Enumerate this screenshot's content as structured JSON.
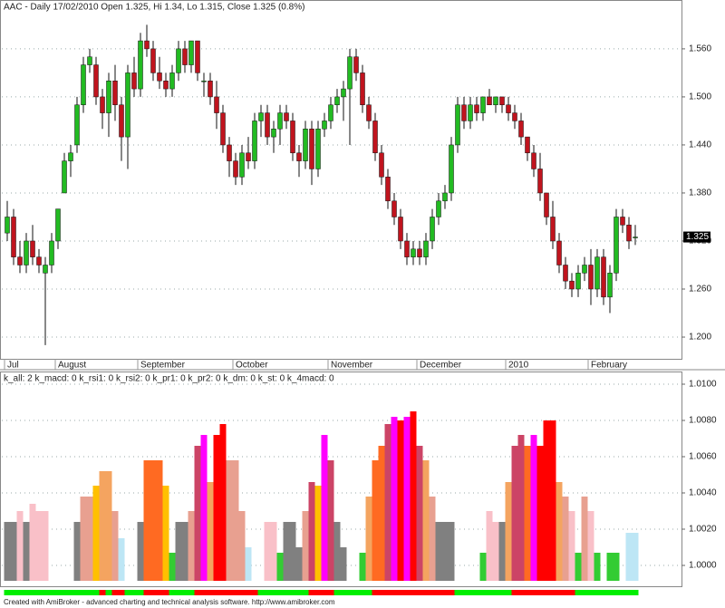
{
  "chart_data": [
    {
      "type": "candlestick",
      "title": "AAC - Daily 17/02/2010 Open 1.325, Hi 1.34, Lo 1.315, Close 1.325 (0.8%)",
      "categories": [
        "Jul",
        null,
        null,
        null,
        null,
        null,
        null,
        null,
        "August",
        null,
        null,
        null,
        null,
        null,
        null,
        null,
        null,
        null,
        null,
        null,
        null,
        "September",
        null,
        null,
        null,
        null,
        null,
        null,
        null,
        null,
        null,
        null,
        null,
        null,
        null,
        null,
        "October",
        null,
        null,
        null,
        null,
        null,
        null,
        null,
        null,
        null,
        null,
        null,
        null,
        null,
        null,
        "November",
        null,
        null,
        null,
        null,
        null,
        null,
        null,
        null,
        null,
        null,
        null,
        null,
        null,
        "December",
        null,
        null,
        null,
        null,
        null,
        null,
        null,
        null,
        null,
        null,
        null,
        null,
        null,
        "2010",
        null,
        null,
        null,
        null,
        null,
        null,
        null,
        null,
        null,
        null,
        null,
        null,
        "February",
        null,
        null,
        null,
        null,
        null,
        null,
        null
      ],
      "ohlc": [
        [
          1.33,
          1.37,
          1.32,
          1.35
        ],
        [
          1.35,
          1.36,
          1.29,
          1.3
        ],
        [
          1.3,
          1.32,
          1.28,
          1.29
        ],
        [
          1.29,
          1.33,
          1.28,
          1.32
        ],
        [
          1.32,
          1.34,
          1.29,
          1.3
        ],
        [
          1.3,
          1.31,
          1.28,
          1.29
        ],
        [
          1.28,
          1.3,
          1.19,
          1.29
        ],
        [
          1.29,
          1.33,
          1.28,
          1.32
        ],
        [
          1.32,
          1.36,
          1.31,
          1.36
        ],
        [
          1.38,
          1.43,
          1.38,
          1.42
        ],
        [
          1.42,
          1.44,
          1.4,
          1.43
        ],
        [
          1.44,
          1.5,
          1.43,
          1.49
        ],
        [
          1.49,
          1.55,
          1.48,
          1.54
        ],
        [
          1.54,
          1.56,
          1.53,
          1.55
        ],
        [
          1.54,
          1.55,
          1.49,
          1.5
        ],
        [
          1.5,
          1.51,
          1.46,
          1.48
        ],
        [
          1.48,
          1.53,
          1.45,
          1.52
        ],
        [
          1.52,
          1.54,
          1.47,
          1.49
        ],
        [
          1.49,
          1.5,
          1.42,
          1.45
        ],
        [
          1.45,
          1.54,
          1.41,
          1.53
        ],
        [
          1.53,
          1.55,
          1.5,
          1.51
        ],
        [
          1.51,
          1.58,
          1.5,
          1.57
        ],
        [
          1.57,
          1.59,
          1.55,
          1.56
        ],
        [
          1.56,
          1.57,
          1.52,
          1.53
        ],
        [
          1.53,
          1.55,
          1.51,
          1.52
        ],
        [
          1.52,
          1.53,
          1.5,
          1.51
        ],
        [
          1.51,
          1.54,
          1.5,
          1.53
        ],
        [
          1.53,
          1.57,
          1.52,
          1.56
        ],
        [
          1.56,
          1.57,
          1.53,
          1.54
        ],
        [
          1.54,
          1.57,
          1.53,
          1.57
        ],
        [
          1.57,
          1.57,
          1.52,
          1.53
        ],
        [
          1.52,
          1.53,
          1.5,
          1.52
        ],
        [
          1.52,
          1.53,
          1.49,
          1.5
        ],
        [
          1.5,
          1.52,
          1.46,
          1.48
        ],
        [
          1.48,
          1.49,
          1.43,
          1.44
        ],
        [
          1.44,
          1.45,
          1.4,
          1.42
        ],
        [
          1.42,
          1.43,
          1.39,
          1.4
        ],
        [
          1.4,
          1.44,
          1.39,
          1.43
        ],
        [
          1.43,
          1.45,
          1.41,
          1.42
        ],
        [
          1.42,
          1.48,
          1.41,
          1.47
        ],
        [
          1.47,
          1.49,
          1.45,
          1.48
        ],
        [
          1.48,
          1.49,
          1.44,
          1.45
        ],
        [
          1.45,
          1.47,
          1.43,
          1.46
        ],
        [
          1.46,
          1.49,
          1.44,
          1.48
        ],
        [
          1.48,
          1.49,
          1.46,
          1.47
        ],
        [
          1.47,
          1.48,
          1.42,
          1.43
        ],
        [
          1.43,
          1.44,
          1.4,
          1.42
        ],
        [
          1.42,
          1.47,
          1.41,
          1.46
        ],
        [
          1.46,
          1.47,
          1.39,
          1.41
        ],
        [
          1.41,
          1.47,
          1.4,
          1.46
        ],
        [
          1.46,
          1.48,
          1.45,
          1.47
        ],
        [
          1.47,
          1.5,
          1.46,
          1.49
        ],
        [
          1.49,
          1.51,
          1.48,
          1.5
        ],
        [
          1.5,
          1.52,
          1.47,
          1.51
        ],
        [
          1.51,
          1.56,
          1.44,
          1.55
        ],
        [
          1.55,
          1.56,
          1.52,
          1.53
        ],
        [
          1.53,
          1.54,
          1.48,
          1.49
        ],
        [
          1.49,
          1.5,
          1.46,
          1.47
        ],
        [
          1.47,
          1.48,
          1.42,
          1.43
        ],
        [
          1.43,
          1.44,
          1.39,
          1.4
        ],
        [
          1.4,
          1.41,
          1.36,
          1.37
        ],
        [
          1.37,
          1.38,
          1.34,
          1.35
        ],
        [
          1.35,
          1.36,
          1.31,
          1.32
        ],
        [
          1.32,
          1.33,
          1.29,
          1.3
        ],
        [
          1.3,
          1.32,
          1.29,
          1.31
        ],
        [
          1.31,
          1.32,
          1.29,
          1.3
        ],
        [
          1.3,
          1.33,
          1.29,
          1.32
        ],
        [
          1.32,
          1.36,
          1.31,
          1.35
        ],
        [
          1.35,
          1.38,
          1.34,
          1.37
        ],
        [
          1.37,
          1.39,
          1.36,
          1.38
        ],
        [
          1.38,
          1.45,
          1.37,
          1.44
        ],
        [
          1.44,
          1.5,
          1.43,
          1.49
        ],
        [
          1.49,
          1.5,
          1.46,
          1.47
        ],
        [
          1.47,
          1.5,
          1.46,
          1.49
        ],
        [
          1.49,
          1.5,
          1.47,
          1.48
        ],
        [
          1.48,
          1.5,
          1.47,
          1.5
        ],
        [
          1.5,
          1.51,
          1.49,
          1.49
        ],
        [
          1.49,
          1.5,
          1.48,
          1.5
        ],
        [
          1.5,
          1.5,
          1.48,
          1.49
        ],
        [
          1.49,
          1.5,
          1.47,
          1.48
        ],
        [
          1.48,
          1.49,
          1.46,
          1.47
        ],
        [
          1.47,
          1.48,
          1.44,
          1.45
        ],
        [
          1.45,
          1.45,
          1.42,
          1.43
        ],
        [
          1.43,
          1.44,
          1.4,
          1.41
        ],
        [
          1.41,
          1.43,
          1.37,
          1.38
        ],
        [
          1.38,
          1.38,
          1.34,
          1.35
        ],
        [
          1.35,
          1.37,
          1.31,
          1.32
        ],
        [
          1.32,
          1.33,
          1.28,
          1.29
        ],
        [
          1.29,
          1.3,
          1.26,
          1.27
        ],
        [
          1.27,
          1.28,
          1.25,
          1.26
        ],
        [
          1.26,
          1.29,
          1.25,
          1.28
        ],
        [
          1.28,
          1.3,
          1.27,
          1.29
        ],
        [
          1.29,
          1.31,
          1.24,
          1.26
        ],
        [
          1.26,
          1.31,
          1.25,
          1.3
        ],
        [
          1.3,
          1.31,
          1.24,
          1.25
        ],
        [
          1.25,
          1.29,
          1.23,
          1.28
        ],
        [
          1.28,
          1.36,
          1.27,
          1.35
        ],
        [
          1.35,
          1.36,
          1.33,
          1.34
        ],
        [
          1.34,
          1.35,
          1.31,
          1.32
        ],
        [
          1.325,
          1.34,
          1.315,
          1.325
        ]
      ],
      "up_color": "#22bb22",
      "down_color": "#c0141e",
      "last_price_label": "1.325",
      "ylim": [
        1.1706,
        1.621
      ],
      "yticks": [
        {
          "value": 1.2,
          "label": "1.200"
        },
        {
          "value": 1.26,
          "label": "1.260"
        },
        {
          "value": 1.32,
          "label": "1.320"
        },
        {
          "value": 1.38,
          "label": "1.380"
        },
        {
          "value": 1.44,
          "label": "1.440"
        },
        {
          "value": 1.5,
          "label": "1.500"
        },
        {
          "value": 1.56,
          "label": "1.560"
        }
      ],
      "grid": true
    },
    {
      "type": "bar",
      "title": "k_all: 2 k_macd: 0 k_rsi1: 0 k_rsi2: 0 k_pr1: 0 k_pr2: 0 k_dm: 0 k_st: 0 k_4macd: 0",
      "values": [
        1.0024,
        1.0024,
        1.003,
        1.0024,
        1.0034,
        1.003,
        1.003,
        null,
        null,
        null,
        null,
        1.0024,
        1.0038,
        1.0038,
        1.0044,
        1.0052,
        1.0052,
        1.003,
        1.0015,
        null,
        null,
        1.0024,
        1.0058,
        1.0058,
        1.0058,
        1.0044,
        1.0007,
        1.0024,
        1.0024,
        1.003,
        1.0066,
        1.0072,
        1.0046,
        1.0072,
        1.0078,
        1.0058,
        1.0058,
        1.003,
        1.001,
        null,
        null,
        1.0024,
        1.0024,
        1.0007,
        1.0024,
        1.0024,
        1.001,
        1.003,
        1.0046,
        1.0044,
        1.0072,
        1.0058,
        1.0024,
        1.001,
        null,
        null,
        1.0007,
        1.0038,
        1.0058,
        1.0066,
        1.0078,
        1.0082,
        1.008,
        1.0082,
        1.0085,
        1.0066,
        1.0058,
        1.0038,
        1.0024,
        1.0024,
        1.0024,
        null,
        null,
        null,
        null,
        1.0007,
        1.003,
        1.0024,
        1.0024,
        1.0046,
        1.0066,
        1.0072,
        1.0066,
        1.0072,
        1.0066,
        1.008,
        1.008,
        1.0046,
        1.0038,
        1.003,
        1.0007,
        1.0038,
        1.003,
        1.0007,
        null,
        1.0007,
        1.0007,
        null,
        1.0018,
        1.0018
      ],
      "colors": [
        "#808080",
        "#808080",
        "#f9c0c8",
        "#808080",
        "#f9c0c8",
        "#f9c0c8",
        "#f9c0c8",
        null,
        null,
        null,
        null,
        "#808080",
        "#e8a090",
        "#e8a090",
        "#ffc000",
        "#f4a460",
        "#f4a460",
        "#e8a090",
        "#bde6f5",
        null,
        null,
        "#808080",
        "#ff6a22",
        "#ff6a22",
        "#ff6a22",
        "#ffc000",
        "#33cc33",
        "#808080",
        "#808080",
        "#e8a090",
        "#cc4466",
        "#ff00ff",
        "#f4a460",
        "#ff0000",
        "#ff0000",
        "#e8a090",
        "#e8a090",
        "#e8a090",
        "#bde6f5",
        null,
        null,
        "#f9c0c8",
        "#f9c0c8",
        "#33cc33",
        "#808080",
        "#808080",
        "#808080",
        "#e8a090",
        "#cc4466",
        "#ffc000",
        "#ff00ff",
        "#cc4466",
        "#808080",
        "#808080",
        null,
        null,
        "#33cc33",
        "#f4a460",
        "#ff6a22",
        "#ff6a22",
        "#cc4466",
        "#ff00ff",
        "#ff0000",
        "#ff00ff",
        "#ff0000",
        "#cc4466",
        "#f4a460",
        "#e8a090",
        "#808080",
        "#808080",
        "#808080",
        null,
        null,
        null,
        null,
        "#33cc33",
        "#f9c0c8",
        "#f9c0c8",
        "#808080",
        "#f4a460",
        "#cc4466",
        "#cc4466",
        "#ff6a22",
        "#ff00ff",
        "#ff0000",
        "#ff0000",
        "#ff0000",
        "#f4a460",
        "#e8a090",
        "#f9c0c8",
        "#33cc33",
        "#e8a090",
        "#f9c0c8",
        "#33cc33",
        null,
        "#33cc33",
        "#33cc33",
        null,
        "#bde6f5",
        "#bde6f5"
      ],
      "ribbon": [
        {
          "from": 0,
          "to": 15,
          "color": "#00ee00"
        },
        {
          "from": 15,
          "to": 16,
          "color": "#ff0000"
        },
        {
          "from": 16,
          "to": 17,
          "color": "#00ee00"
        },
        {
          "from": 17,
          "to": 19,
          "color": "#ff0000"
        },
        {
          "from": 19,
          "to": 22,
          "color": "#00ee00"
        },
        {
          "from": 22,
          "to": 26,
          "color": "#ff0000"
        },
        {
          "from": 26,
          "to": 30,
          "color": "#00ee00"
        },
        {
          "from": 30,
          "to": 40,
          "color": "#ff0000"
        },
        {
          "from": 40,
          "to": 48,
          "color": "#00ee00"
        },
        {
          "from": 48,
          "to": 52,
          "color": "#ff0000"
        },
        {
          "from": 52,
          "to": 58,
          "color": "#00ee00"
        },
        {
          "from": 58,
          "to": 71,
          "color": "#ff0000"
        },
        {
          "from": 71,
          "to": 80,
          "color": "#00ee00"
        },
        {
          "from": 80,
          "to": 90,
          "color": "#ff0000"
        },
        {
          "from": 90,
          "to": 100,
          "color": "#00ee00"
        }
      ],
      "ylim": [
        0.99915,
        1.0107
      ],
      "yticks": [
        {
          "value": 1.0,
          "label": "1.0000"
        },
        {
          "value": 1.002,
          "label": "1.0020"
        },
        {
          "value": 1.004,
          "label": "1.0040"
        },
        {
          "value": 1.006,
          "label": "1.0060"
        },
        {
          "value": 1.008,
          "label": "1.0080"
        },
        {
          "value": 1.01,
          "label": "1.0100"
        }
      ],
      "grid": true
    }
  ],
  "footer": "Created with AmiBroker - advanced charting and technical analysis software. http://www.amibroker.com"
}
